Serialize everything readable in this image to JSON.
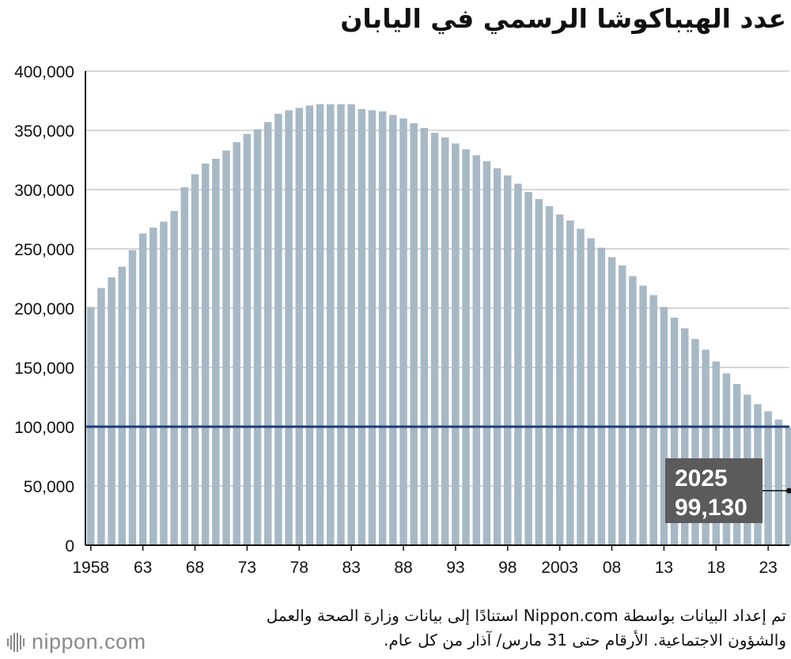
{
  "title": "عدد الهيباكوشا الرسمي في اليابان",
  "source_note": "تم إعداد البيانات بواسطة Nippon.com استنادًا إلى بيانات وزارة الصحة والعمل والشؤون الاجتماعية. الأرقام حتى 31 مارس/ آذار من كل عام.",
  "logo": {
    "text": "nippon.com",
    "icon": "nippon-logo-mark-icon"
  },
  "colors": {
    "bar": "#a7b9c5",
    "reference_line": "#1f3a75",
    "callout_bg": "#5b5b5b",
    "grid": "#c8c8c8"
  },
  "chart_data": {
    "type": "bar",
    "title": "عدد الهيباكوشا الرسمي في اليابان",
    "xlabel": "",
    "ylabel": "",
    "ylim": [
      0,
      400000
    ],
    "grid": true,
    "y_ticks": [
      0,
      50000,
      100000,
      150000,
      200000,
      250000,
      300000,
      350000,
      400000
    ],
    "y_tick_labels": [
      "0",
      "50,000",
      "100,000",
      "150,000",
      "200,000",
      "250,000",
      "300,000",
      "350,000",
      "400,000"
    ],
    "x_tick_labels": [
      {
        "year": 1958,
        "label": "1958"
      },
      {
        "year": 1963,
        "label": "63"
      },
      {
        "year": 1968,
        "label": "68"
      },
      {
        "year": 1973,
        "label": "73"
      },
      {
        "year": 1978,
        "label": "78"
      },
      {
        "year": 1983,
        "label": "83"
      },
      {
        "year": 1988,
        "label": "88"
      },
      {
        "year": 1993,
        "label": "93"
      },
      {
        "year": 1998,
        "label": "98"
      },
      {
        "year": 2003,
        "label": "2003"
      },
      {
        "year": 2008,
        "label": "08"
      },
      {
        "year": 2013,
        "label": "13"
      },
      {
        "year": 2018,
        "label": "18"
      },
      {
        "year": 2023,
        "label": "23"
      }
    ],
    "categories": [
      1958,
      1959,
      1960,
      1961,
      1962,
      1963,
      1964,
      1965,
      1966,
      1967,
      1968,
      1969,
      1970,
      1971,
      1972,
      1973,
      1974,
      1975,
      1976,
      1977,
      1978,
      1979,
      1980,
      1981,
      1982,
      1983,
      1984,
      1985,
      1986,
      1987,
      1988,
      1989,
      1990,
      1991,
      1992,
      1993,
      1994,
      1995,
      1996,
      1997,
      1998,
      1999,
      2000,
      2001,
      2002,
      2003,
      2004,
      2005,
      2006,
      2007,
      2008,
      2009,
      2010,
      2011,
      2012,
      2013,
      2014,
      2015,
      2016,
      2017,
      2018,
      2019,
      2020,
      2021,
      2022,
      2023,
      2024,
      2025
    ],
    "values": [
      201000,
      217000,
      226000,
      235000,
      249000,
      263000,
      268000,
      273000,
      282000,
      302000,
      313000,
      322000,
      326000,
      333000,
      340000,
      347000,
      351000,
      357000,
      364000,
      367000,
      369000,
      371000,
      372000,
      372000,
      372000,
      372000,
      368000,
      367000,
      366000,
      363000,
      360000,
      356000,
      352000,
      348000,
      344000,
      339000,
      334000,
      329000,
      324000,
      318000,
      312000,
      305000,
      298000,
      292000,
      286000,
      279000,
      274000,
      267000,
      259000,
      251000,
      243000,
      236000,
      227000,
      219000,
      211000,
      201000,
      192000,
      183000,
      174000,
      165000,
      155000,
      145000,
      136000,
      127000,
      119000,
      113000,
      106000,
      99130
    ],
    "reference_line": 100000,
    "callout": {
      "year_label": "2025",
      "value_label": "99,130"
    }
  }
}
